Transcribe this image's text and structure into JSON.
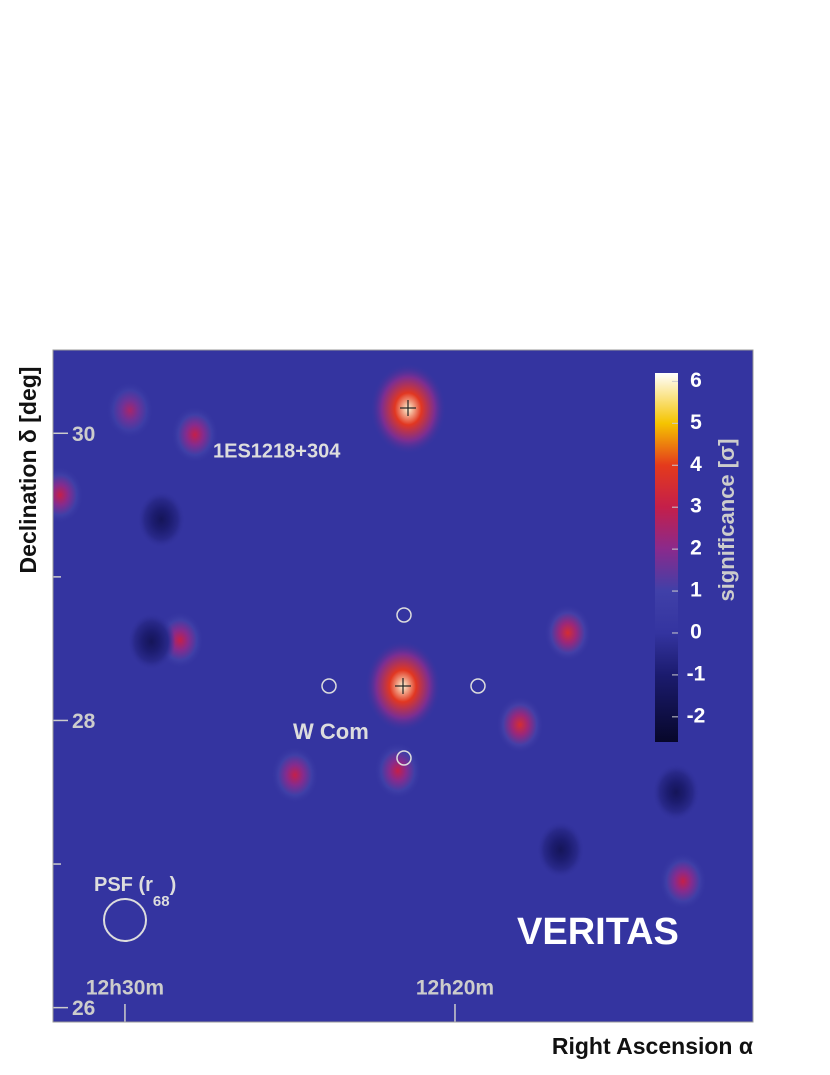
{
  "chart_data": {
    "type": "skymap",
    "xlabel": "Right Ascension α",
    "ylabel": "Declination δ [deg]",
    "colorbar_label": "significance [σ]",
    "xlim": [
      32.18,
      10.97
    ],
    "ylim": [
      25.9,
      30.58
    ],
    "xticks": [
      {
        "value": 30,
        "label": "12h30m"
      },
      {
        "value": 20,
        "label": "12h20m"
      }
    ],
    "yticks": [
      26,
      28,
      30
    ],
    "yminor": [
      27,
      29
    ],
    "zlim": [
      -2.6,
      6.2
    ],
    "zticks": [
      -2,
      -1,
      0,
      1,
      2,
      3,
      4,
      5,
      6
    ],
    "colorscale": [
      [
        -2.6,
        "#07072a"
      ],
      [
        -1,
        "#1b1b6e"
      ],
      [
        0,
        "#3434a0"
      ],
      [
        1,
        "#4040a8"
      ],
      [
        2,
        "#8a2a8c"
      ],
      [
        3,
        "#c41f4a"
      ],
      [
        4,
        "#e43a1c"
      ],
      [
        5,
        "#f5c400"
      ],
      [
        6.2,
        "#ffffff"
      ]
    ],
    "sources": [
      {
        "x": 21.42,
        "y": 30.17,
        "value": 6
      },
      {
        "x": 21.58,
        "y": 28.24,
        "value": 6
      },
      {
        "x": 16.58,
        "y": 28.61,
        "value": 3.5
      },
      {
        "x": 18.03,
        "y": 27.97,
        "value": 3.5
      },
      {
        "x": 21.73,
        "y": 27.65,
        "value": 3
      },
      {
        "x": 13.09,
        "y": 26.88,
        "value": 3
      },
      {
        "x": 31.97,
        "y": 29.57,
        "value": 3
      },
      {
        "x": 27.88,
        "y": 29.99,
        "value": 3
      },
      {
        "x": 28.33,
        "y": 28.56,
        "value": 3
      },
      {
        "x": 24.85,
        "y": 27.62,
        "value": 3
      },
      {
        "x": 29.85,
        "y": 30.16,
        "value": 2.5
      },
      {
        "x": 28.9,
        "y": 29.4,
        "value": -1.5
      },
      {
        "x": 29.2,
        "y": 28.55,
        "value": -1.5
      },
      {
        "x": 13.3,
        "y": 27.5,
        "value": -1.5
      },
      {
        "x": 16.8,
        "y": 27.1,
        "value": -1.5
      }
    ],
    "annotations": [
      "1ES1218+304",
      "W Com",
      "VERITAS"
    ],
    "psf_label": [
      "PSF (r",
      "68",
      ")"
    ]
  }
}
